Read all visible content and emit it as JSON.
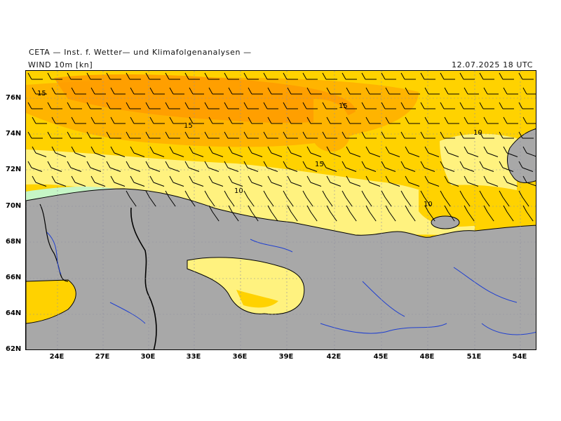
{
  "header": {
    "source": "CETA — Inst. f. Wetter— und Klimafolgenanalysen —",
    "product": "WIND 10m [kn]",
    "datetime": "12.07.2025 18 UTC"
  },
  "map": {
    "lat_labels": [
      "76N",
      "74N",
      "72N",
      "70N",
      "68N",
      "66N",
      "64N",
      "62N"
    ],
    "lon_labels": [
      "24E",
      "27E",
      "30E",
      "33E",
      "36E",
      "39E",
      "42E",
      "45E",
      "48E",
      "51E",
      "54E"
    ],
    "contour_labels": [
      "15",
      "15",
      "15",
      "15",
      "10",
      "10",
      "10"
    ],
    "colors": {
      "land": "#a8a8a8",
      "very_light_green": "#c6f6c6",
      "light_yellow": "#fff27f",
      "yellow": "#ffd200",
      "orange_yellow": "#ffb400",
      "orange": "#ff9b00",
      "coast": "#000000",
      "river": "#2040d0",
      "border": "#000000",
      "grid": "#9090a0"
    }
  }
}
